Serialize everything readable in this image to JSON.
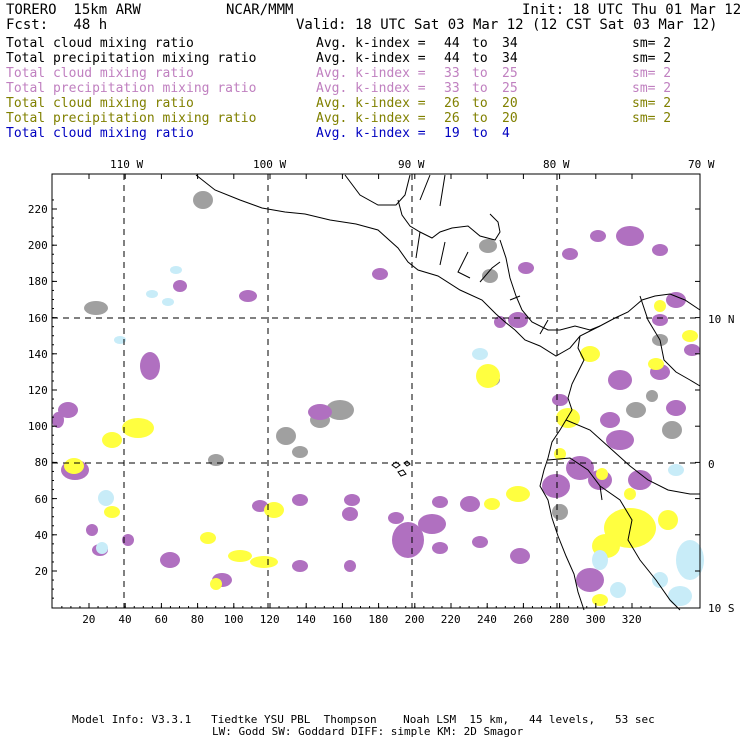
{
  "header": {
    "model": "TORERO  15km ARW",
    "org": "NCAR/MMM",
    "init": "Init: 18 UTC Thu 01 Mar 12",
    "fcst": "Fcst:   48 h",
    "valid": "Valid: 18 UTC Sat 03 Mar 12 (12 CST Sat 03 Mar 12)"
  },
  "legend": [
    {
      "field": "Total cloud mixing ratio",
      "kindex": "Avg. k-index =",
      "from": "44",
      "to_word": "to",
      "to": "34",
      "sm": "sm= 2",
      "color": "#000000"
    },
    {
      "field": "Total precipitation mixing ratio",
      "kindex": "Avg. k-index =",
      "from": "44",
      "to_word": "to",
      "to": "34",
      "sm": "sm= 2",
      "color": "#000000"
    },
    {
      "field": "Total cloud mixing ratio",
      "kindex": "Avg. k-index =",
      "from": "33",
      "to_word": "to",
      "to": "25",
      "sm": "sm= 2",
      "color": "#c080c0"
    },
    {
      "field": "Total precipitation mixing ratio",
      "kindex": "Avg. k-index =",
      "from": "33",
      "to_word": "to",
      "to": "25",
      "sm": "sm= 2",
      "color": "#c080c0"
    },
    {
      "field": "Total cloud mixing ratio",
      "kindex": "Avg. k-index =",
      "from": "26",
      "to_word": "to",
      "to": "20",
      "sm": "sm= 2",
      "color": "#808000"
    },
    {
      "field": "Total precipitation mixing ratio",
      "kindex": "Avg. k-index =",
      "from": "26",
      "to_word": "to",
      "to": "20",
      "sm": "sm= 2",
      "color": "#808000"
    },
    {
      "field": "Total cloud mixing ratio",
      "kindex": "Avg. k-index =",
      "from": "19",
      "to_word": "to",
      "to": "4",
      "sm": "",
      "color": "#0000c0"
    }
  ],
  "axes": {
    "lon_labels": [
      "110 W",
      "100 W",
      "90 W",
      "80 W",
      "70 W"
    ],
    "lat_labels": [
      "10 N",
      "0",
      "10 S"
    ],
    "x_ticks": [
      "20",
      "40",
      "60",
      "80",
      "100",
      "120",
      "140",
      "160",
      "180",
      "200",
      "220",
      "240",
      "260",
      "280",
      "300",
      "320"
    ],
    "y_ticks": [
      "220",
      "200",
      "180",
      "160",
      "140",
      "120",
      "100",
      "80",
      "60",
      "40",
      "20"
    ]
  },
  "colors": {
    "gray": "#a0a0a0",
    "purple": "#b070c0",
    "yellow": "#ffff40",
    "lightblue": "#c8ecf8",
    "coast": "#000000"
  },
  "footer": {
    "line1": "Model Info: V3.3.1   Tiedtke YSU PBL  Thompson    Noah LSM  15 km,   44 levels,   53 sec",
    "line2": "LW: Godd SW: Goddard DIFF: simple KM: 2D Smagor"
  }
}
